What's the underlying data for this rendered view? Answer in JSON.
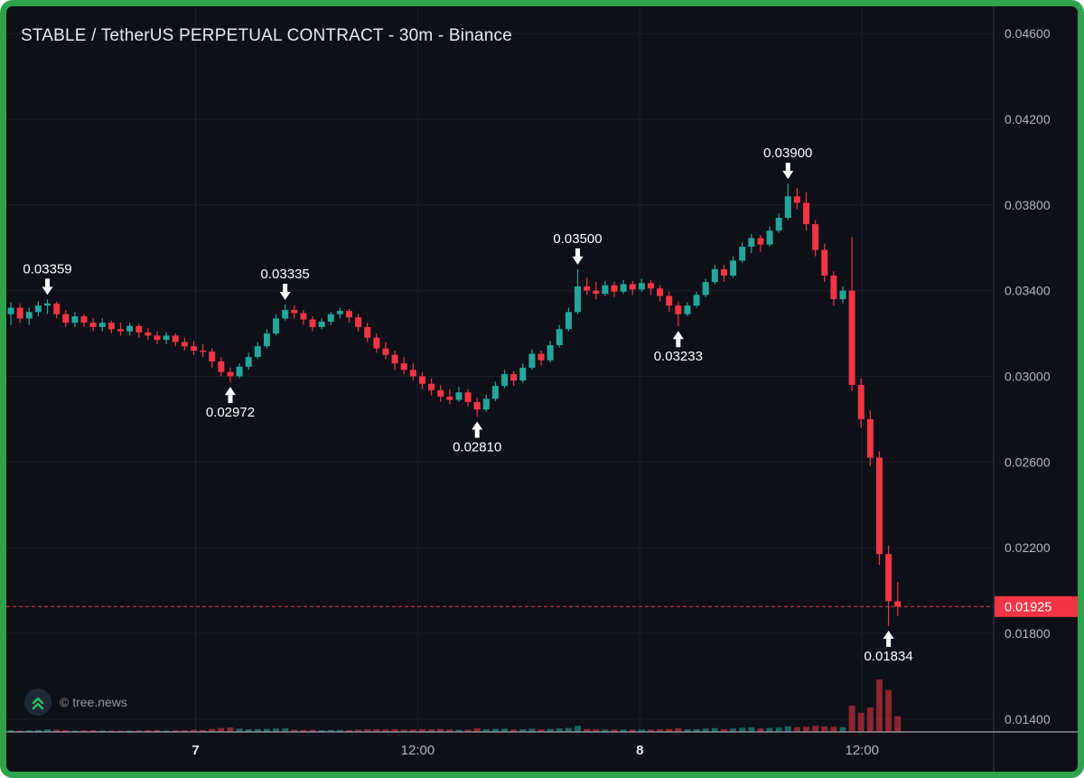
{
  "header": {
    "title": "STABLE / TetherUS PERPETUAL CONTRACT - 30m - Binance"
  },
  "footer": {
    "attribution": "© tree.news"
  },
  "colors": {
    "bg": "#0e1018",
    "frame": "#2fa24c",
    "grid": "#1a1e2a",
    "up": "#26a69a",
    "down": "#f23645",
    "volume_up": "rgba(38,166,154,0.55)",
    "volume_down": "rgba(242,54,69,0.55)",
    "axis_text": "#b2b5be",
    "axis_text_bold": "#e4e6eb",
    "axis_line": "#363b47",
    "time_axis_line": "#9fa3ac",
    "last_price_line": "#f23645",
    "tag_bg": "#f23645",
    "tag_text": "#ffffff",
    "annotation": "#ffffff",
    "logo_green": "#2fbf62",
    "attribution_text": "#9195a0"
  },
  "chart_data": {
    "type": "candlestick",
    "title": "STABLE / TetherUS PERPETUAL CONTRACT - 30m - Binance",
    "symbol": "STABLE / TetherUS",
    "contract": "PERPETUAL CONTRACT",
    "interval": "30m",
    "exchange": "Binance",
    "ylim": [
      0.0134,
      0.04727
    ],
    "total_slots": 108,
    "y_axis": {
      "ticks": [
        {
          "label": "0.04600",
          "value": 0.046
        },
        {
          "label": "0.04200",
          "value": 0.042
        },
        {
          "label": "0.03800",
          "value": 0.038
        },
        {
          "label": "0.03400",
          "value": 0.034
        },
        {
          "label": "0.03000",
          "value": 0.03
        },
        {
          "label": "0.02600",
          "value": 0.026
        },
        {
          "label": "0.02200",
          "value": 0.022
        },
        {
          "label": "0.01800",
          "value": 0.018
        },
        {
          "label": "0.01400",
          "value": 0.014
        }
      ]
    },
    "x_axis": {
      "ticks": [
        {
          "label": "7",
          "slot": 20.2,
          "bold": true
        },
        {
          "label": "12:00",
          "slot": 44.5,
          "bold": false
        },
        {
          "label": "8",
          "slot": 68.8,
          "bold": true
        },
        {
          "label": "12:00",
          "slot": 93.1,
          "bold": false
        }
      ]
    },
    "last_price": {
      "label": "0.01925",
      "value": 0.01925
    },
    "annotations": [
      {
        "label": "0.03359",
        "slot": 4,
        "price": 0.03359,
        "dir": "down"
      },
      {
        "label": "0.02972",
        "slot": 24,
        "price": 0.02972,
        "dir": "up"
      },
      {
        "label": "0.03335",
        "slot": 30,
        "price": 0.03335,
        "dir": "down"
      },
      {
        "label": "0.02810",
        "slot": 51,
        "price": 0.0281,
        "dir": "up"
      },
      {
        "label": "0.03500",
        "slot": 62,
        "price": 0.035,
        "dir": "down"
      },
      {
        "label": "0.03233",
        "slot": 73,
        "price": 0.03233,
        "dir": "up"
      },
      {
        "label": "0.03900",
        "slot": 85,
        "price": 0.039,
        "dir": "down"
      },
      {
        "label": "0.01834",
        "slot": 96,
        "price": 0.01834,
        "dir": "up"
      }
    ],
    "candles": [
      [
        0.0329,
        0.03345,
        0.0324,
        0.0332
      ],
      [
        0.0332,
        0.0334,
        0.0325,
        0.0327
      ],
      [
        0.0327,
        0.0332,
        0.0324,
        0.033
      ],
      [
        0.033,
        0.0335,
        0.0328,
        0.0333
      ],
      [
        0.0333,
        0.03359,
        0.0329,
        0.0334
      ],
      [
        0.0334,
        0.0335,
        0.0327,
        0.0329
      ],
      [
        0.0329,
        0.0331,
        0.0323,
        0.0325
      ],
      [
        0.0325,
        0.033,
        0.0323,
        0.0328
      ],
      [
        0.0328,
        0.0329,
        0.0323,
        0.0325
      ],
      [
        0.0325,
        0.0327,
        0.0321,
        0.0323
      ],
      [
        0.0323,
        0.0327,
        0.0321,
        0.0325
      ],
      [
        0.0325,
        0.0326,
        0.032,
        0.0322
      ],
      [
        0.0322,
        0.0325,
        0.0319,
        0.0321
      ],
      [
        0.0321,
        0.0325,
        0.0319,
        0.03235
      ],
      [
        0.03235,
        0.03245,
        0.0318,
        0.03205
      ],
      [
        0.03205,
        0.03225,
        0.0317,
        0.0319
      ],
      [
        0.0319,
        0.0321,
        0.0315,
        0.0317
      ],
      [
        0.0317,
        0.03205,
        0.0315,
        0.0319
      ],
      [
        0.0319,
        0.032,
        0.0314,
        0.0316
      ],
      [
        0.0316,
        0.0318,
        0.0312,
        0.0314
      ],
      [
        0.0314,
        0.03165,
        0.031,
        0.0312
      ],
      [
        0.0312,
        0.0315,
        0.0309,
        0.03115
      ],
      [
        0.03115,
        0.0313,
        0.0304,
        0.0307
      ],
      [
        0.0307,
        0.0309,
        0.03,
        0.0302
      ],
      [
        0.0302,
        0.0304,
        0.02972,
        0.03
      ],
      [
        0.03,
        0.0306,
        0.0299,
        0.03045
      ],
      [
        0.03045,
        0.0311,
        0.0303,
        0.0309
      ],
      [
        0.0309,
        0.0316,
        0.0308,
        0.0314
      ],
      [
        0.0314,
        0.0322,
        0.0313,
        0.032
      ],
      [
        0.032,
        0.0329,
        0.0319,
        0.0327
      ],
      [
        0.0327,
        0.03335,
        0.0326,
        0.0331
      ],
      [
        0.0331,
        0.0333,
        0.0327,
        0.03295
      ],
      [
        0.03295,
        0.0331,
        0.0324,
        0.03265
      ],
      [
        0.03265,
        0.0328,
        0.0321,
        0.0323
      ],
      [
        0.0323,
        0.0327,
        0.0322,
        0.03255
      ],
      [
        0.03255,
        0.033,
        0.0324,
        0.0329
      ],
      [
        0.0329,
        0.0332,
        0.0327,
        0.03305
      ],
      [
        0.03305,
        0.03315,
        0.0325,
        0.03275
      ],
      [
        0.03275,
        0.0329,
        0.0321,
        0.0323
      ],
      [
        0.0323,
        0.0325,
        0.0316,
        0.0318
      ],
      [
        0.0318,
        0.032,
        0.0311,
        0.0313
      ],
      [
        0.0313,
        0.0316,
        0.0308,
        0.031
      ],
      [
        0.031,
        0.0312,
        0.0303,
        0.0306
      ],
      [
        0.0306,
        0.0309,
        0.0301,
        0.0303
      ],
      [
        0.0303,
        0.0306,
        0.0298,
        0.03
      ],
      [
        0.03,
        0.0302,
        0.0294,
        0.02965
      ],
      [
        0.02965,
        0.0299,
        0.0291,
        0.02935
      ],
      [
        0.02935,
        0.0296,
        0.0288,
        0.02905
      ],
      [
        0.02905,
        0.0294,
        0.0287,
        0.0289
      ],
      [
        0.0289,
        0.0295,
        0.0288,
        0.02925
      ],
      [
        0.02925,
        0.0294,
        0.0286,
        0.0288
      ],
      [
        0.0288,
        0.029,
        0.0281,
        0.02845
      ],
      [
        0.02845,
        0.02915,
        0.02835,
        0.02895
      ],
      [
        0.02895,
        0.02975,
        0.02885,
        0.02955
      ],
      [
        0.02955,
        0.0303,
        0.02945,
        0.0301
      ],
      [
        0.0301,
        0.03025,
        0.02955,
        0.0298
      ],
      [
        0.0298,
        0.0306,
        0.0297,
        0.0304
      ],
      [
        0.0304,
        0.03125,
        0.0303,
        0.03105
      ],
      [
        0.03105,
        0.0312,
        0.0305,
        0.03075
      ],
      [
        0.03075,
        0.03165,
        0.03065,
        0.03145
      ],
      [
        0.03145,
        0.0324,
        0.03135,
        0.0322
      ],
      [
        0.0322,
        0.0332,
        0.0321,
        0.033
      ],
      [
        0.033,
        0.035,
        0.0329,
        0.0342
      ],
      [
        0.0342,
        0.0346,
        0.0338,
        0.034
      ],
      [
        0.034,
        0.0344,
        0.0336,
        0.03385
      ],
      [
        0.03385,
        0.03445,
        0.03375,
        0.03425
      ],
      [
        0.03425,
        0.0344,
        0.0337,
        0.03395
      ],
      [
        0.03395,
        0.0345,
        0.03385,
        0.0343
      ],
      [
        0.0343,
        0.03445,
        0.0338,
        0.03405
      ],
      [
        0.03405,
        0.03455,
        0.03395,
        0.03435
      ],
      [
        0.03435,
        0.0345,
        0.0338,
        0.0341
      ],
      [
        0.0341,
        0.03425,
        0.0335,
        0.03375
      ],
      [
        0.03375,
        0.03395,
        0.033,
        0.0333
      ],
      [
        0.0333,
        0.0335,
        0.03233,
        0.0329
      ],
      [
        0.0329,
        0.03345,
        0.0328,
        0.0333
      ],
      [
        0.0333,
        0.03395,
        0.0332,
        0.0338
      ],
      [
        0.0338,
        0.03455,
        0.0337,
        0.0344
      ],
      [
        0.0344,
        0.0352,
        0.0343,
        0.035
      ],
      [
        0.035,
        0.0352,
        0.0344,
        0.0347
      ],
      [
        0.0347,
        0.0356,
        0.0346,
        0.0354
      ],
      [
        0.0354,
        0.03625,
        0.0353,
        0.03605
      ],
      [
        0.03605,
        0.03665,
        0.03575,
        0.03645
      ],
      [
        0.03645,
        0.0366,
        0.0358,
        0.03615
      ],
      [
        0.03615,
        0.037,
        0.03605,
        0.0368
      ],
      [
        0.0368,
        0.0376,
        0.0367,
        0.0374
      ],
      [
        0.0374,
        0.039,
        0.0373,
        0.0384
      ],
      [
        0.0384,
        0.0388,
        0.0378,
        0.0381
      ],
      [
        0.0381,
        0.0386,
        0.0368,
        0.0371
      ],
      [
        0.0371,
        0.0373,
        0.0356,
        0.0359
      ],
      [
        0.0359,
        0.0362,
        0.0344,
        0.0347
      ],
      [
        0.0347,
        0.0349,
        0.0333,
        0.0336
      ],
      [
        0.0336,
        0.0342,
        0.0334,
        0.034
      ],
      [
        0.034,
        0.0365,
        0.0293,
        0.0296
      ],
      [
        0.0296,
        0.0299,
        0.0276,
        0.028
      ],
      [
        0.028,
        0.0284,
        0.0258,
        0.0262
      ],
      [
        0.0262,
        0.0265,
        0.0212,
        0.0217
      ],
      [
        0.0217,
        0.0221,
        0.01834,
        0.0195
      ],
      [
        0.0195,
        0.0204,
        0.0188,
        0.01925
      ]
    ],
    "volumes": [
      2,
      1.5,
      1.8,
      2.2,
      3,
      2.5,
      2,
      1.5,
      1.8,
      2,
      1.6,
      1.5,
      1.4,
      1.6,
      1.8,
      2,
      2.2,
      1.6,
      1.8,
      2,
      2.4,
      2.2,
      3.5,
      4.5,
      5,
      3.8,
      3,
      3.2,
      3.5,
      4,
      4.2,
      2.5,
      2.2,
      2.4,
      2,
      2.2,
      2.4,
      2,
      2.5,
      3,
      3.2,
      2.8,
      3,
      2.6,
      2.8,
      3.2,
      3,
      3.4,
      2.8,
      2.4,
      2.6,
      4.2,
      3.2,
      3.6,
      3.8,
      2.6,
      3,
      3.6,
      2.8,
      3.4,
      4,
      4.6,
      7,
      3.4,
      2.8,
      2.6,
      2.4,
      2.6,
      2.4,
      2.8,
      2.6,
      3,
      3.4,
      4.4,
      3,
      3.2,
      3.8,
      4.4,
      3.2,
      4,
      4.8,
      5.2,
      4,
      4.6,
      5,
      6.5,
      5.5,
      6,
      7,
      6.5,
      6,
      5.5,
      30,
      22,
      28,
      60,
      48,
      18
    ]
  }
}
